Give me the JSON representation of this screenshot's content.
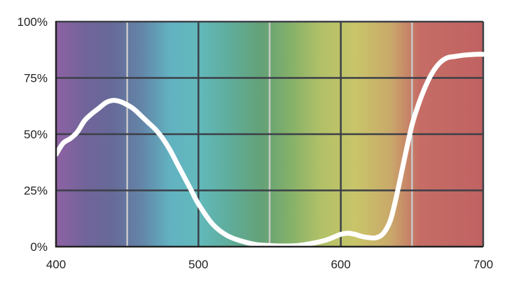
{
  "chart_data": {
    "type": "line",
    "title": "",
    "xlabel": "",
    "ylabel": "",
    "xlim": [
      400,
      700
    ],
    "ylim": [
      0,
      100
    ],
    "grid": true,
    "x_ticks": [
      400,
      500,
      600,
      700
    ],
    "x_tick_labels": [
      "400",
      "500",
      "600",
      "700"
    ],
    "y_ticks": [
      0,
      25,
      50,
      75,
      100
    ],
    "y_tick_labels": [
      "0%",
      "25%",
      "50%",
      "75%",
      "100%"
    ],
    "minor_x_gridlines": [
      450,
      550,
      650
    ],
    "background": "visible-spectrum gradient",
    "colors": {
      "line": "#ffffff",
      "major_grid": "#3c3f47",
      "minor_grid": "#c8c8c8",
      "axis": "#222222",
      "spectrum_stops": [
        {
          "x": 400,
          "color": "#8e62a4"
        },
        {
          "x": 420,
          "color": "#72649a"
        },
        {
          "x": 440,
          "color": "#666a98"
        },
        {
          "x": 460,
          "color": "#6385a8"
        },
        {
          "x": 480,
          "color": "#62b2c1"
        },
        {
          "x": 500,
          "color": "#62b9bc"
        },
        {
          "x": 520,
          "color": "#5fae9e"
        },
        {
          "x": 545,
          "color": "#64a176"
        },
        {
          "x": 565,
          "color": "#85b169"
        },
        {
          "x": 585,
          "color": "#b0c067"
        },
        {
          "x": 610,
          "color": "#c9c56a"
        },
        {
          "x": 635,
          "color": "#c9a96a"
        },
        {
          "x": 655,
          "color": "#c66d66"
        },
        {
          "x": 700,
          "color": "#c06262"
        }
      ]
    },
    "series": [
      {
        "x": [
          400,
          405,
          410,
          415,
          420,
          425,
          430,
          435,
          440,
          445,
          450,
          455,
          460,
          465,
          470,
          475,
          480,
          485,
          490,
          495,
          500,
          510,
          520,
          530,
          540,
          550,
          560,
          570,
          580,
          590,
          600,
          605,
          610,
          615,
          620,
          625,
          630,
          635,
          640,
          645,
          650,
          655,
          660,
          665,
          670,
          675,
          680,
          685,
          690,
          695,
          700
        ],
        "values": [
          41,
          46,
          48,
          51,
          56,
          59,
          61.5,
          64,
          65,
          64.5,
          63,
          61,
          58,
          55,
          52,
          48,
          43,
          37,
          31,
          25,
          19,
          10,
          5,
          2.5,
          1,
          0.5,
          0.3,
          0.5,
          1.5,
          3,
          5.5,
          6,
          5.5,
          4.5,
          4,
          4,
          6,
          12,
          25,
          40,
          54,
          64,
          72,
          78,
          82,
          84,
          84.5,
          85,
          85.3,
          85.5,
          85.5
        ]
      }
    ]
  }
}
